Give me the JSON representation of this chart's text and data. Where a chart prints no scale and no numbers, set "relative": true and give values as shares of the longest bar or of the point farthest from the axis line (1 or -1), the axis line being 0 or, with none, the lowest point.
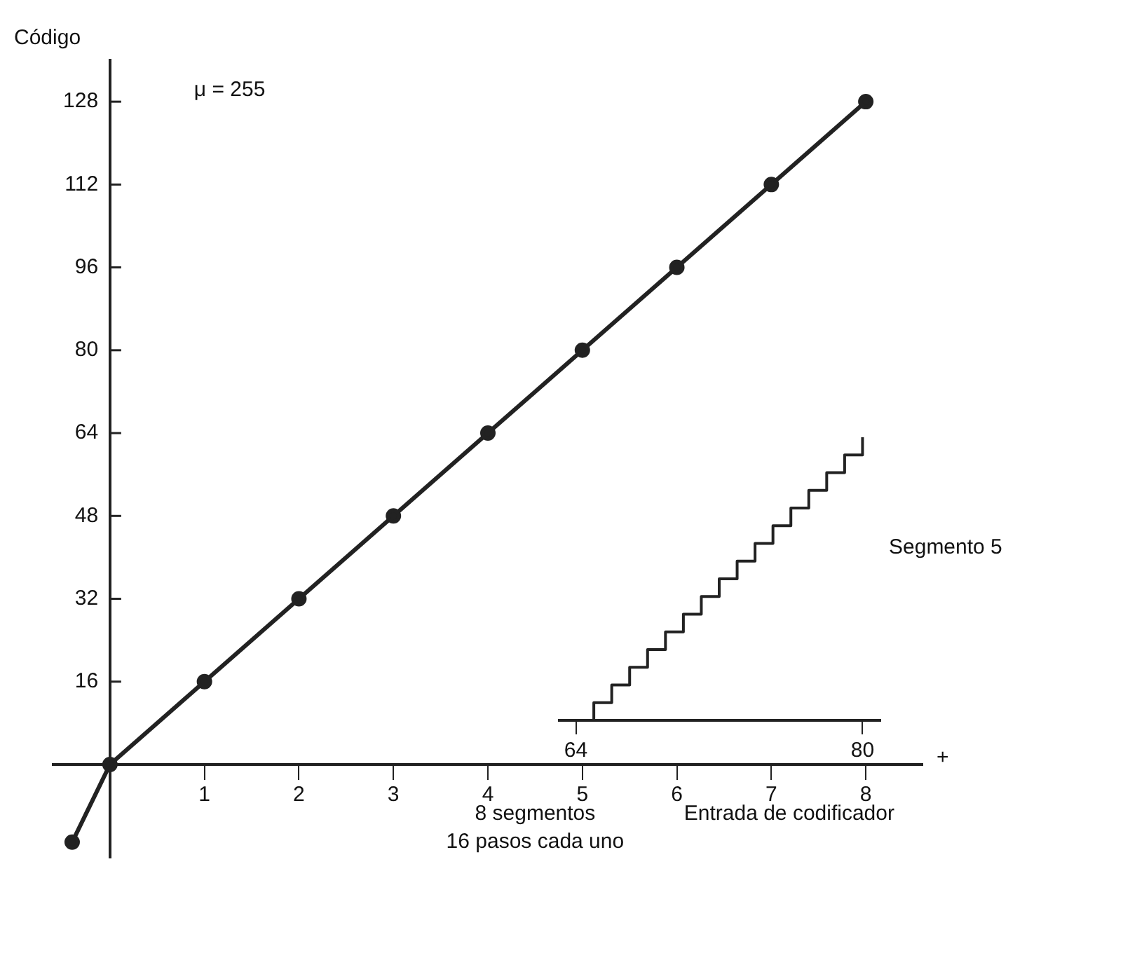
{
  "chart_data": [
    {
      "type": "line",
      "ylabel": "Código",
      "xlabel": "Entrada de codificador",
      "annotations": [
        "μ = 255",
        "8 segmentos",
        "16 pasos cada uno",
        "+"
      ],
      "x": [
        -0.4,
        0,
        1,
        2,
        3,
        4,
        5,
        6,
        7,
        8
      ],
      "series": [
        {
          "color": "#222222",
          "values": [
            -15,
            0,
            16,
            32,
            48,
            64,
            80,
            96,
            112,
            128
          ]
        }
      ],
      "marker": "circle",
      "line_style": "solid",
      "xlim": [
        -0.6,
        8.6
      ],
      "xticks": [
        1,
        2,
        3,
        4,
        5,
        6,
        7,
        8
      ],
      "ylim": [
        -18,
        136
      ],
      "yticks": [
        16,
        32,
        48,
        64,
        80,
        96,
        112,
        128
      ],
      "grid": false,
      "legend": false
    },
    {
      "type": "step",
      "title": "Segmento 5",
      "relative": true,
      "x": [
        64,
        65,
        66,
        67,
        68,
        69,
        70,
        71,
        72,
        73,
        74,
        75,
        76,
        77,
        78,
        79,
        80
      ],
      "series": [
        {
          "color": "#222222",
          "values": [
            0,
            0.0625,
            0.125,
            0.1875,
            0.25,
            0.3125,
            0.375,
            0.4375,
            0.5,
            0.5625,
            0.625,
            0.6875,
            0.75,
            0.8125,
            0.875,
            0.9375,
            1
          ]
        }
      ],
      "marker": "none",
      "xlim": [
        63,
        81
      ],
      "xticks": [
        64,
        80
      ],
      "grid": false,
      "legend": false
    }
  ]
}
